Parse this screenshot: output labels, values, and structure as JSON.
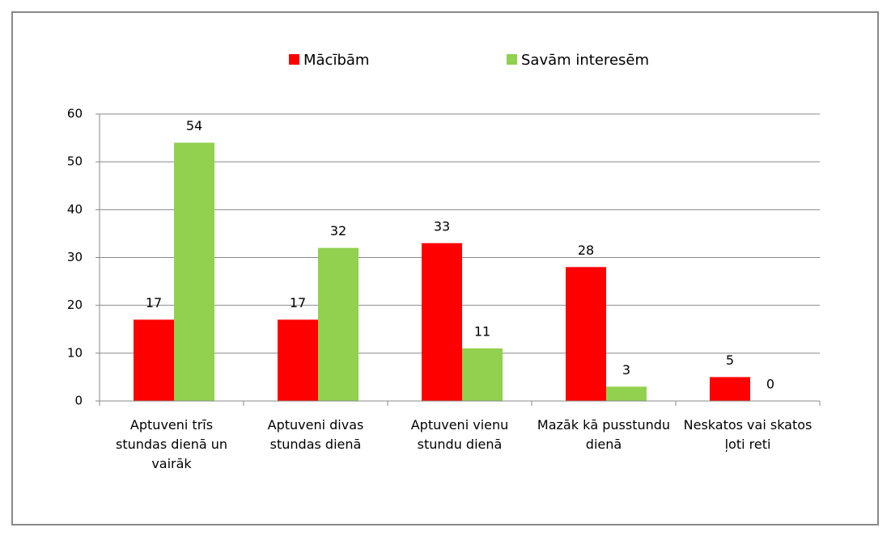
{
  "chart_data": {
    "type": "bar",
    "categories": [
      "Aptuveni trīs stundas dienā un vairāk",
      "Aptuveni divas stundas dienā",
      "Aptuveni vienu stundu dienā",
      "Mazāk kā pusstundu dienā",
      "Neskatos vai skatos ļoti reti"
    ],
    "series": [
      {
        "name": "Mācībām",
        "color": "#ff0000",
        "values": [
          17,
          17,
          33,
          28,
          5
        ]
      },
      {
        "name": "Savām interesēm",
        "color": "#92d050",
        "values": [
          54,
          32,
          11,
          3,
          0
        ]
      }
    ],
    "ylim": [
      0,
      60
    ],
    "yticks": [
      0,
      10,
      20,
      30,
      40,
      50,
      60
    ],
    "grid": true,
    "legend": "top"
  }
}
